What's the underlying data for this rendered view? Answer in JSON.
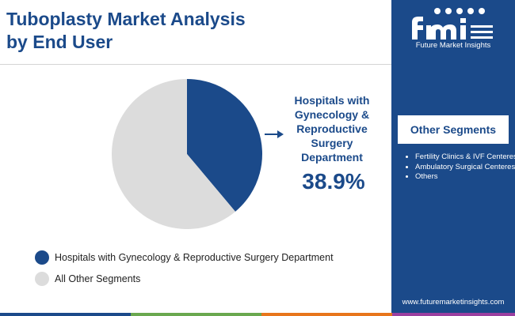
{
  "title": "Tuboplasty Market Analysis by End User",
  "callout": {
    "label": "Hospitals with Gynecology & Reproductive Surgery Department",
    "value": "38.9%"
  },
  "legend": [
    {
      "label": "Hospitals with Gynecology & Reproductive Surgery Department",
      "color": "#1b4a8a"
    },
    {
      "label": "All Other Segments",
      "color": "#dcdcdc"
    }
  ],
  "sidebar": {
    "logo_text": "Future Market Insights",
    "other_segments_title": "Other Segments",
    "other_segments": [
      "Fertility Clinics & IVF Centeres",
      "Ambulatory Surgical Centeres",
      "Others"
    ],
    "website": "www.futuremarketinsights.com"
  },
  "chart_data": {
    "type": "pie",
    "title": "Tuboplasty Market Analysis by End User",
    "slices": [
      {
        "label": "Hospitals with Gynecology & Reproductive Surgery Department",
        "value": 38.9,
        "color": "#1b4a8a"
      },
      {
        "label": "All Other Segments",
        "value": 61.1,
        "color": "#dcdcdc"
      }
    ],
    "legend_position": "bottom-left"
  },
  "colors": {
    "brand": "#1b4a8a",
    "other": "#dcdcdc",
    "bottom_bar": [
      "#1b4a8a",
      "#6aa84f",
      "#e8761c",
      "#9b3fa0"
    ]
  }
}
